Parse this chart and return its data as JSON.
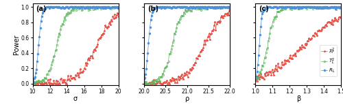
{
  "panels": [
    {
      "label": "(a)",
      "xlabel": "σ",
      "xlim": [
        10,
        20.5
      ],
      "xlim_display": [
        10,
        20
      ],
      "xticks": [
        10,
        12,
        14,
        16,
        18,
        20
      ],
      "curves": {
        "chi2": {
          "midpoint": 17.5,
          "steepness": 0.9,
          "noise": 0.025
        },
        "T2": {
          "midpoint": 12.8,
          "steepness": 1.8,
          "noise": 0.018
        },
        "GLR": {
          "midpoint": 10.7,
          "steepness": 5.5,
          "noise": 0.008
        }
      }
    },
    {
      "label": "(b)",
      "xlabel": "ρ",
      "xlim": [
        20.0,
        22.05
      ],
      "xlim_display": [
        20.0,
        22.0
      ],
      "xticks": [
        20.0,
        20.5,
        21.0,
        21.5,
        22.0
      ],
      "curves": {
        "chi2": {
          "midpoint": 21.4,
          "steepness": 4.5,
          "noise": 0.025
        },
        "T2": {
          "midpoint": 20.65,
          "steepness": 9.0,
          "noise": 0.018
        },
        "GLR": {
          "midpoint": 20.1,
          "steepness": 28.0,
          "noise": 0.008
        }
      }
    },
    {
      "label": "(c)",
      "xlabel": "β",
      "xlim": [
        1.0,
        1.52
      ],
      "xlim_display": [
        1.0,
        1.5
      ],
      "xticks": [
        1.0,
        1.1,
        1.2,
        1.3,
        1.4,
        1.5
      ],
      "curves": {
        "chi2": {
          "midpoint": 1.28,
          "steepness": 9.0,
          "noise": 0.025
        },
        "T2": {
          "midpoint": 1.07,
          "steepness": 45.0,
          "noise": 0.018
        },
        "GLR": {
          "midpoint": 1.022,
          "steepness": 130.0,
          "noise": 0.008
        }
      }
    }
  ],
  "colors": {
    "chi2": "#e8534a",
    "T2": "#5cb85c",
    "GLR": "#4a90d9"
  },
  "markers": {
    "chi2": "*",
    "T2": "s",
    "GLR": "o"
  },
  "legend_labels": {
    "chi2": "$\\chi^2_F$",
    "T2": "$T^2_L$",
    "GLR": "$R_L$"
  },
  "ylim": [
    -0.02,
    1.05
  ],
  "yticks": [
    0.0,
    0.2,
    0.4,
    0.6,
    0.8,
    1.0
  ],
  "ylabel": "Power",
  "n_points": 120,
  "noise_seed": 7
}
